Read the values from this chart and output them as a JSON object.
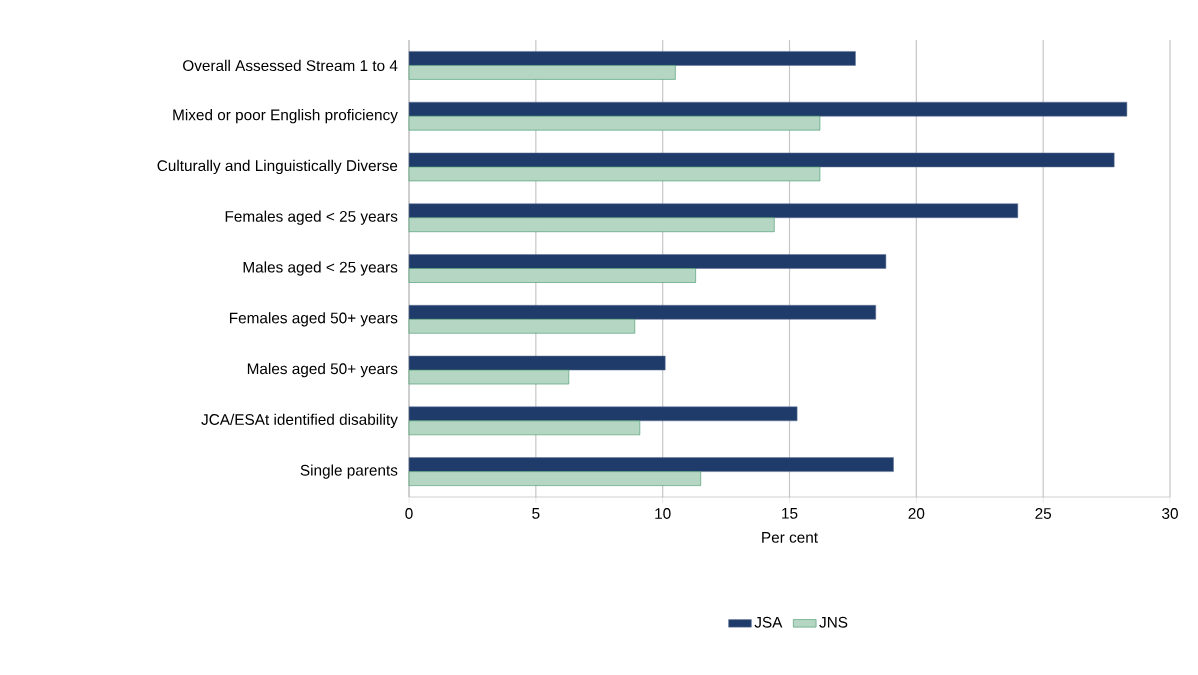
{
  "chart_data": {
    "type": "bar",
    "orientation": "horizontal",
    "xlabel": "Per cent",
    "categories": [
      "Overall Assessed Stream 1 to 4",
      "Mixed or poor English proficiency",
      "Culturally and Linguistically Diverse",
      "Females aged < 25 years",
      "Males aged < 25 years",
      "Females aged 50+ years",
      "Males aged 50+ years",
      "JCA/ESAt identified disability",
      "Single parents"
    ],
    "series": [
      {
        "name": "JSA",
        "color": "#1f3b6a",
        "values": [
          17.6,
          28.3,
          27.8,
          24.0,
          18.8,
          18.4,
          10.1,
          15.3,
          19.1
        ]
      },
      {
        "name": "JNS",
        "color": "#2e8b57",
        "values": [
          10.5,
          16.2,
          16.2,
          14.4,
          11.3,
          8.9,
          6.3,
          9.1,
          11.5
        ]
      }
    ],
    "xlim": [
      0,
      30
    ],
    "xticks": [
      0,
      5,
      10,
      15,
      20,
      25,
      30
    ],
    "grid": "x",
    "legend": "bottom"
  }
}
